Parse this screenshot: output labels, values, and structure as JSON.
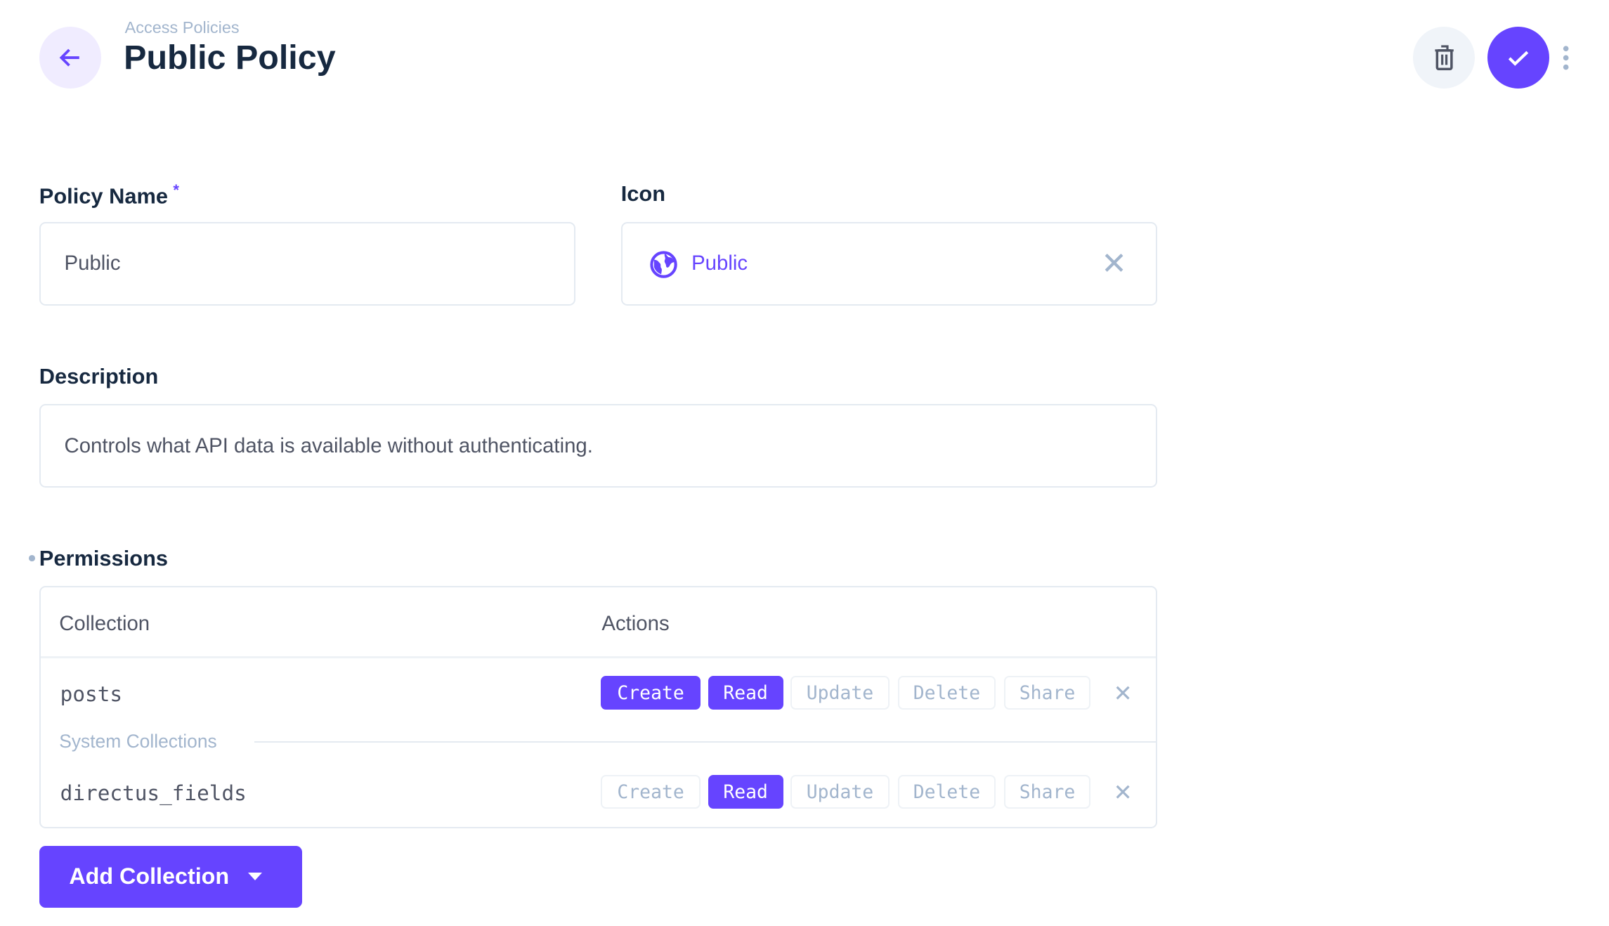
{
  "header": {
    "breadcrumb": "Access Policies",
    "title": "Public Policy",
    "accent": "#6644ff"
  },
  "form": {
    "policy_name": {
      "label": "Policy Name",
      "required_mark": "*",
      "value": "Public"
    },
    "icon": {
      "label": "Icon",
      "value": "Public",
      "icon": "globe-icon"
    },
    "description": {
      "label": "Description",
      "value": "Controls what API data is available without authenticating."
    }
  },
  "permissions": {
    "label": "Permissions",
    "columns": [
      "Collection",
      "Actions"
    ],
    "rows": [
      {
        "collection": "posts",
        "actions": [
          {
            "label": "Create",
            "enabled": true
          },
          {
            "label": "Read",
            "enabled": true
          },
          {
            "label": "Update",
            "enabled": false
          },
          {
            "label": "Delete",
            "enabled": false
          },
          {
            "label": "Share",
            "enabled": false
          }
        ]
      },
      {
        "collection": "directus_fields",
        "actions": [
          {
            "label": "Create",
            "enabled": false
          },
          {
            "label": "Read",
            "enabled": true
          },
          {
            "label": "Update",
            "enabled": false
          },
          {
            "label": "Delete",
            "enabled": false
          },
          {
            "label": "Share",
            "enabled": false
          }
        ]
      }
    ],
    "system_divider": "System Collections",
    "add_button": "Add Collection"
  }
}
